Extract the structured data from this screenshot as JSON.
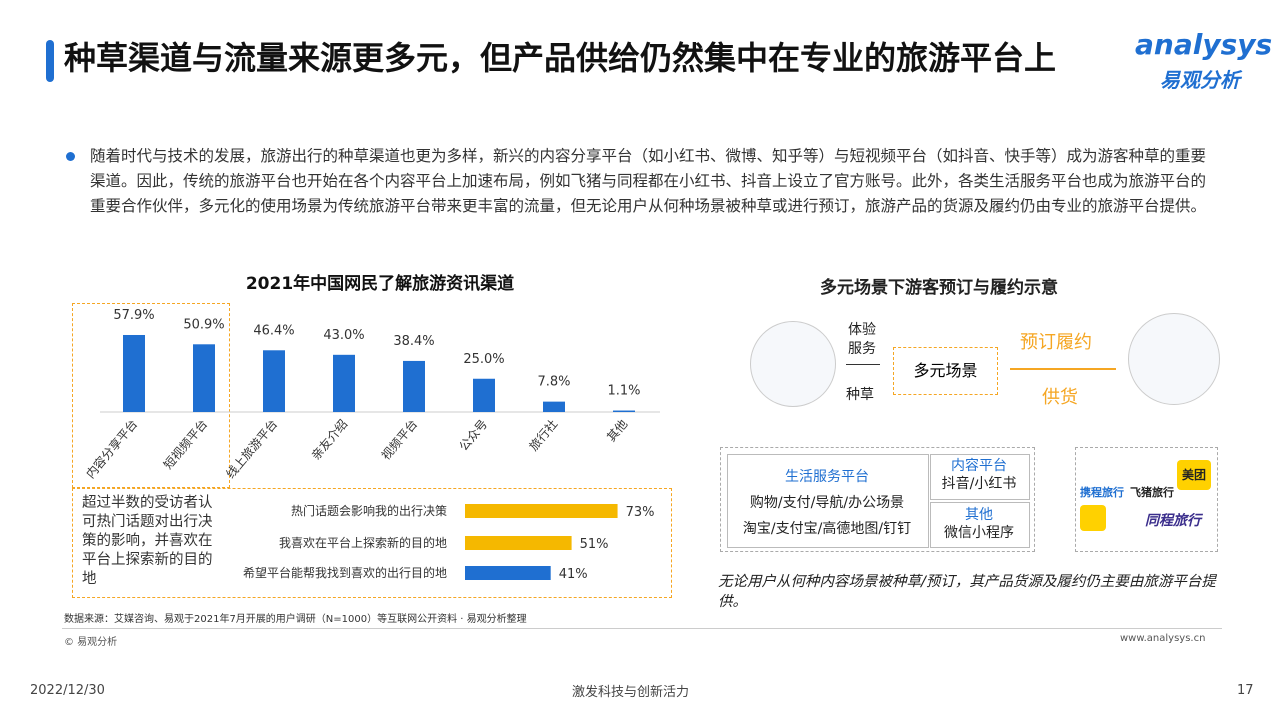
{
  "header": {
    "title": "种草渠道与流量来源更多元，但产品供给仍然集中在专业的旅游平台上",
    "logo_en": "analysys",
    "logo_cn": "易观分析"
  },
  "bullet": "随着时代与技术的发展，旅游出行的种草渠道也更为多样，新兴的内容分享平台（如小红书、微博、知乎等）与短视频平台（如抖音、快手等）成为游客种草的重要渠道。因此，传统的旅游平台也开始在各个内容平台上加速布局，例如飞猪与同程都在小红书、抖音上设立了官方账号。此外，各类生活服务平台也成为旅游平台的重要合作伙伴，多元化的使用场景为传统旅游平台带来更丰富的流量，但无论用户从何种场景被种草或进行预订，旅游产品的货源及履约仍由专业的旅游平台提供。",
  "chart_data": [
    {
      "type": "bar",
      "title": "2021年中国网民了解旅游资讯渠道",
      "categories": [
        "内容分享平台",
        "短视频平台",
        "线上旅游平台",
        "亲友介绍",
        "视频平台",
        "公众号",
        "旅行社",
        "其他"
      ],
      "values": [
        57.9,
        50.9,
        46.4,
        43.0,
        38.4,
        25.0,
        7.8,
        1.1
      ],
      "value_labels": [
        "57.9%",
        "50.9%",
        "46.4%",
        "43.0%",
        "38.4%",
        "25.0%",
        "7.8%",
        "1.1%"
      ],
      "color": "#1f6fd1"
    },
    {
      "type": "hbar",
      "annotation": "超过半数的受访者认可热门话题对出行决策的影响，并喜欢在平台上探索新的目的地",
      "categories": [
        "热门话题会影响我的出行决策",
        "我喜欢在平台上探索新的目的地",
        "希望平台能帮我找到喜欢的出行目的地"
      ],
      "values": [
        73,
        51,
        41
      ],
      "value_labels": [
        "73%",
        "51%",
        "41%"
      ],
      "colors": [
        "#f5b800",
        "#f5b800",
        "#1f6fd1"
      ]
    }
  ],
  "diagram": {
    "title": "多元场景下游客预订与履约示意",
    "left_top": "体验服务",
    "left_bottom": "种草",
    "center": "多元场景",
    "right_top": "预订履约",
    "right_bottom": "供货",
    "life_title": "生活服务平台",
    "life_1": "购物/支付/导航/办公场景",
    "life_2": "淘宝/支付宝/高德地图/钉钉",
    "content_title": "内容平台",
    "content_1": "抖音/小红书",
    "other_title": "其他",
    "other_1": "微信小程序",
    "logos": [
      "携程旅行",
      "飞猪旅行",
      "美团",
      "同程旅行"
    ],
    "caption": "无论用户从何种内容场景被种草/预订，其产品货源及履约仍主要由旅游平台提供。"
  },
  "source": "数据来源：艾媒咨询、易观于2021年7月开展的用户调研（N=1000）等互联网公开资料 · 易观分析整理",
  "copyright": "© 易观分析",
  "url": "www.analysys.cn",
  "footer": {
    "date": "2022/12/30",
    "slogan": "激发科技与创新活力",
    "page": "17"
  }
}
